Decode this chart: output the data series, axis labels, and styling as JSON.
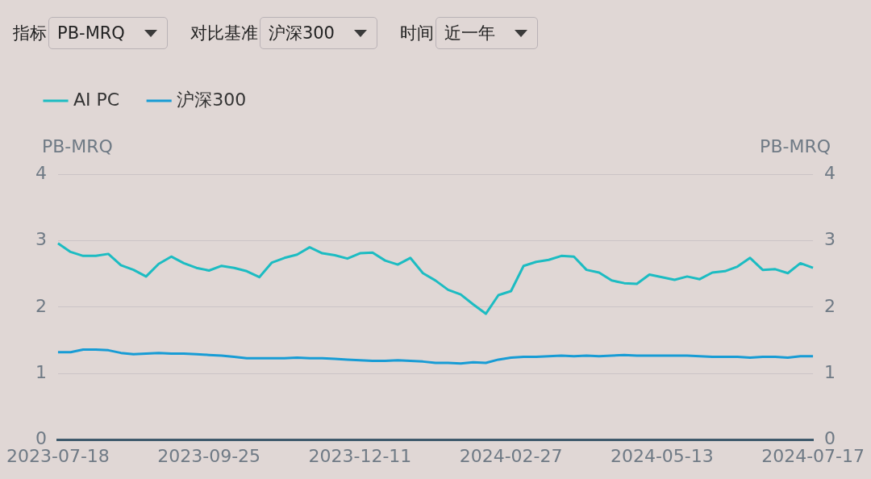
{
  "chart_data": {
    "type": "line",
    "annotations": [
      "指标",
      "PB-MRQ",
      "对比基准",
      "沪深300",
      "时间",
      "近一年"
    ],
    "ylabel": "PB-MRQ",
    "y2label": "PB-MRQ",
    "categories": [
      "2023-07-18",
      null,
      null,
      null,
      null,
      null,
      null,
      null,
      null,
      null,
      null,
      null,
      "2023-09-25",
      null,
      null,
      null,
      null,
      null,
      null,
      null,
      null,
      null,
      null,
      null,
      "2023-12-11",
      null,
      null,
      null,
      null,
      null,
      null,
      null,
      null,
      null,
      null,
      null,
      "2024-02-27",
      null,
      null,
      null,
      null,
      null,
      null,
      null,
      null,
      null,
      null,
      null,
      "2024-05-13",
      null,
      null,
      null,
      null,
      null,
      null,
      null,
      null,
      null,
      null,
      null,
      "2024-07-17"
    ],
    "series": [
      {
        "name": "AI PC",
        "color": "#1cbcc2",
        "values": [
          2.96,
          2.83,
          2.77,
          2.77,
          2.8,
          2.63,
          2.56,
          2.46,
          2.65,
          2.76,
          2.66,
          2.59,
          2.55,
          2.62,
          2.59,
          2.54,
          2.45,
          2.67,
          2.74,
          2.79,
          2.9,
          2.81,
          2.78,
          2.73,
          2.81,
          2.82,
          2.7,
          2.64,
          2.74,
          2.51,
          2.4,
          2.26,
          2.19,
          2.04,
          1.9,
          2.18,
          2.24,
          2.62,
          2.68,
          2.71,
          2.77,
          2.76,
          2.56,
          2.52,
          2.4,
          2.36,
          2.35,
          2.49,
          2.45,
          2.41,
          2.46,
          2.42,
          2.52,
          2.54,
          2.61,
          2.74,
          2.56,
          2.57,
          2.51,
          2.66,
          2.59
        ]
      },
      {
        "name": "沪深300",
        "color": "#179cd5",
        "values": [
          1.32,
          1.32,
          1.36,
          1.36,
          1.35,
          1.31,
          1.29,
          1.3,
          1.31,
          1.3,
          1.3,
          1.29,
          1.28,
          1.27,
          1.25,
          1.23,
          1.23,
          1.23,
          1.23,
          1.24,
          1.23,
          1.23,
          1.22,
          1.21,
          1.2,
          1.19,
          1.19,
          1.2,
          1.19,
          1.18,
          1.16,
          1.16,
          1.15,
          1.17,
          1.16,
          1.21,
          1.24,
          1.25,
          1.25,
          1.26,
          1.27,
          1.26,
          1.27,
          1.26,
          1.27,
          1.28,
          1.27,
          1.27,
          1.27,
          1.27,
          1.27,
          1.26,
          1.25,
          1.25,
          1.25,
          1.24,
          1.25,
          1.25,
          1.24,
          1.26,
          1.26
        ]
      }
    ],
    "ylim": [
      0,
      4
    ],
    "yticks": [
      0,
      1,
      2,
      3,
      4
    ],
    "y2lim": [
      0,
      4
    ],
    "y2ticks": [
      0,
      1,
      2,
      3,
      4
    ],
    "grid": "y",
    "legend": "top left",
    "marker": "none",
    "line_style": "solid"
  }
}
